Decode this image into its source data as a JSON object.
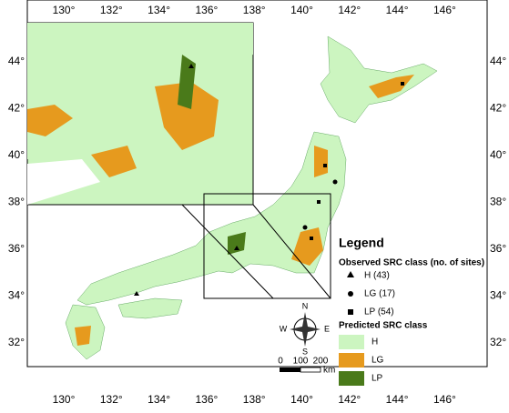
{
  "axes": {
    "top": [
      "130°",
      "132°",
      "134°",
      "136°",
      "138°",
      "140°",
      "142°",
      "144°",
      "146°"
    ],
    "bottom": [
      "130°",
      "132°",
      "134°",
      "136°",
      "138°",
      "140°",
      "142°",
      "144°",
      "146°"
    ],
    "left": [
      "44°",
      "42°",
      "40°",
      "38°",
      "36°",
      "34°",
      "32°"
    ],
    "right": [
      "44°",
      "42°",
      "40°",
      "38°",
      "36°",
      "34°",
      "32°"
    ]
  },
  "compass": {
    "north": "N",
    "south": "S",
    "west": "W",
    "east": "E"
  },
  "scale": {
    "labels": [
      "0",
      "100",
      "200"
    ],
    "unit": "km"
  },
  "legend": {
    "title": "Legend",
    "observed_title": "Observed SRC class (no. of sites)",
    "observed": [
      "H (43)",
      "LG (17)",
      "LP (54)"
    ],
    "predicted_title": "Predicted SRC class",
    "predicted": [
      "H",
      "LG",
      "LP"
    ]
  }
}
